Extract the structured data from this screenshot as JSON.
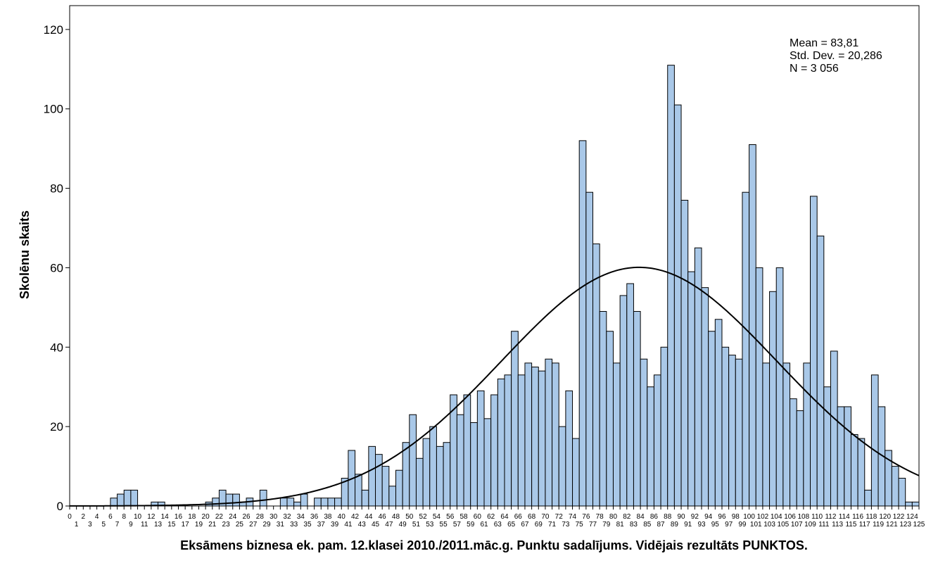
{
  "chart_data": {
    "type": "bar",
    "title": "",
    "xlabel": "Eksāmens biznesa ek. pam. 12.klasei 2010./2011.māc.g. Punktu sadalījums. Vidējais rezultāts PUNKTOS.",
    "ylabel": "Skolēnu skaits",
    "ylim": [
      0,
      126
    ],
    "yticks": [
      0,
      20,
      40,
      60,
      80,
      100,
      120
    ],
    "xlim": [
      0,
      125
    ],
    "grid": false,
    "stats": {
      "mean": "Mean = 83,81",
      "std": "Std. Dev. = 20,286",
      "n": "N = 3 056"
    },
    "normal_curve": {
      "mean": 83.81,
      "std": 20.286,
      "n": 3056,
      "bin_width": 1
    },
    "bins": [
      0,
      1,
      2,
      3,
      4,
      5,
      6,
      7,
      8,
      9,
      10,
      11,
      12,
      13,
      14,
      15,
      16,
      17,
      18,
      19,
      20,
      21,
      22,
      23,
      24,
      25,
      26,
      27,
      28,
      29,
      30,
      31,
      32,
      33,
      34,
      35,
      36,
      37,
      38,
      39,
      40,
      41,
      42,
      43,
      44,
      45,
      46,
      47,
      48,
      49,
      50,
      51,
      52,
      53,
      54,
      55,
      56,
      57,
      58,
      59,
      60,
      61,
      62,
      63,
      64,
      65,
      66,
      67,
      68,
      69,
      70,
      71,
      72,
      73,
      74,
      75,
      76,
      77,
      78,
      79,
      80,
      81,
      82,
      83,
      84,
      85,
      86,
      87,
      88,
      89,
      90,
      91,
      92,
      93,
      94,
      95,
      96,
      97,
      98,
      99,
      100,
      101,
      102,
      103,
      104,
      105,
      106,
      107,
      108,
      109,
      110,
      111,
      112,
      113,
      114,
      115,
      116,
      117,
      118,
      119,
      120,
      121,
      122,
      123,
      124
    ],
    "values": [
      0,
      0,
      0,
      0,
      0,
      0,
      2,
      3,
      4,
      4,
      0,
      0,
      1,
      1,
      0,
      0,
      0,
      0,
      0,
      0,
      1,
      2,
      4,
      3,
      3,
      1,
      2,
      0,
      4,
      0,
      0,
      2,
      2,
      1,
      3,
      0,
      2,
      2,
      2,
      2,
      7,
      14,
      8,
      4,
      15,
      13,
      10,
      5,
      9,
      16,
      23,
      12,
      17,
      20,
      15,
      16,
      28,
      23,
      28,
      21,
      29,
      22,
      28,
      32,
      33,
      44,
      33,
      36,
      35,
      34,
      37,
      36,
      20,
      29,
      17,
      92,
      79,
      66,
      49,
      44,
      36,
      53,
      56,
      49,
      37,
      30,
      33,
      40,
      111,
      101,
      77,
      59,
      65,
      55,
      44,
      47,
      40,
      38,
      37,
      79,
      91,
      60,
      36,
      54,
      60,
      36,
      27,
      24,
      36,
      78,
      68,
      30,
      39,
      25,
      25,
      18,
      17,
      4,
      33,
      25,
      14,
      10,
      7,
      1,
      1
    ]
  }
}
